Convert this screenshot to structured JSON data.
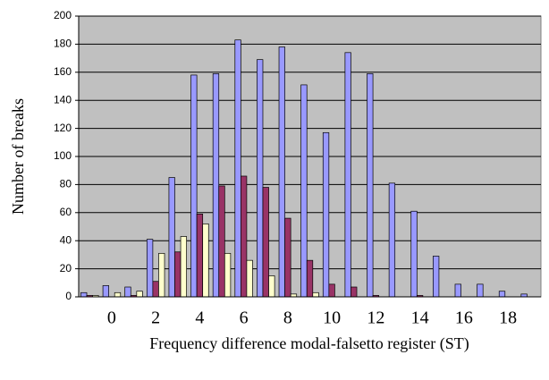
{
  "chart_data": {
    "type": "bar",
    "xlabel": "Frequency difference modal-falsetto register (ST)",
    "ylabel": "Number of breaks",
    "categories": [
      null,
      "0",
      null,
      "2",
      null,
      "4",
      null,
      "6",
      null,
      "8",
      null,
      "10",
      null,
      "12",
      null,
      "14",
      null,
      "16",
      null,
      "18",
      null
    ],
    "series": [
      {
        "color": "#9999ff",
        "values": [
          3,
          8,
          7,
          41,
          85,
          158,
          159,
          183,
          169,
          178,
          151,
          117,
          174,
          159,
          81,
          61,
          29,
          9,
          9,
          4,
          2
        ]
      },
      {
        "color": "#993366",
        "values": [
          1,
          0,
          1,
          11,
          32,
          59,
          79,
          86,
          78,
          56,
          26,
          9,
          7,
          1,
          0,
          1,
          0,
          0,
          0,
          0,
          0
        ]
      },
      {
        "color": "#ffffcc",
        "values": [
          1,
          3,
          4,
          31,
          43,
          52,
          31,
          26,
          15,
          2,
          3,
          0,
          0,
          0,
          0,
          0,
          0,
          0,
          0,
          0,
          0
        ]
      }
    ],
    "ylim": [
      0,
      200
    ],
    "yticks": [
      0,
      20,
      40,
      60,
      80,
      100,
      120,
      140,
      160,
      180,
      200
    ],
    "grid": true,
    "background": "#c0c0c0"
  }
}
